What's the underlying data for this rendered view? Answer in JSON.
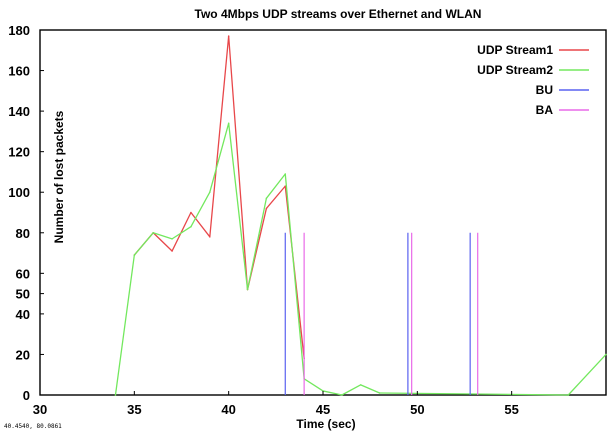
{
  "chart_data": {
    "type": "line",
    "title": "Two 4Mbps UDP streams over Ethernet and WLAN",
    "xlabel": "Time (sec)",
    "ylabel": "Number of lost packets",
    "xlim": [
      30,
      60
    ],
    "ylim": [
      0,
      180
    ],
    "x_ticks": [
      30,
      35,
      40,
      45,
      50,
      55
    ],
    "y_ticks": [
      0,
      20,
      40,
      50,
      60,
      80,
      100,
      120,
      140,
      160,
      180
    ],
    "grid": false,
    "legend_position": "top-right",
    "coordinate_readout": "40.4540,  80.0861",
    "series": [
      {
        "name": "UDP Stream1",
        "color": "#e8474a",
        "x": [
          35,
          36,
          37,
          38,
          39,
          40,
          41,
          42,
          43,
          44
        ],
        "y": [
          69,
          80,
          71,
          90,
          78,
          177,
          52,
          92,
          103,
          18
        ]
      },
      {
        "name": "UDP Stream2",
        "color": "#73e85e",
        "x": [
          34,
          35,
          36,
          37,
          38,
          39,
          40,
          41,
          42,
          43,
          44,
          45,
          46,
          47,
          48,
          58,
          60
        ],
        "y": [
          0,
          69,
          80,
          77,
          83,
          100,
          134,
          52,
          97,
          109,
          8,
          2,
          0,
          5,
          1,
          0,
          20
        ]
      },
      {
        "name": "BU",
        "color": "#5a62f0",
        "type": "event",
        "x": [
          43.0,
          49.5,
          52.8
        ],
        "height": 80
      },
      {
        "name": "BA",
        "color": "#e96ae8",
        "type": "event",
        "x": [
          44.0,
          49.7,
          53.2
        ],
        "height": 80
      }
    ]
  }
}
